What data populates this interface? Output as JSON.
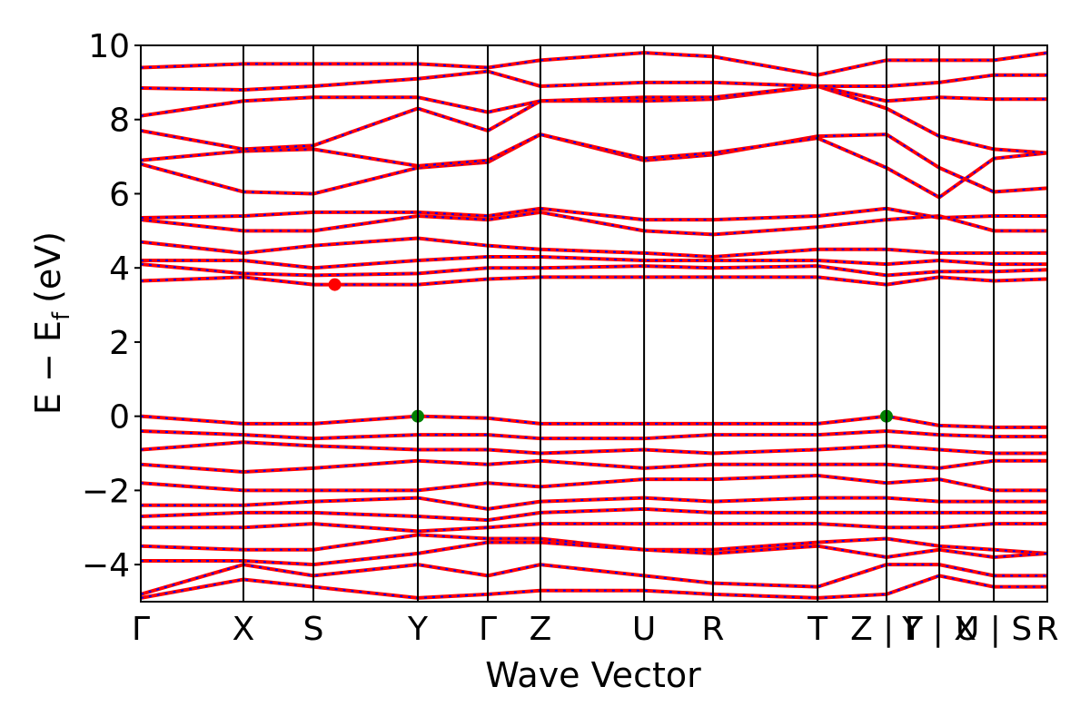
{
  "chart_data": {
    "type": "line",
    "xlabel": "Wave Vector",
    "ylabel": "E − E",
    "ylabel_sub": "f",
    "ylabel_unit": "(eV)",
    "x": [
      0,
      0.566,
      0.952,
      1.528,
      1.914,
      2.204,
      2.776,
      3.156,
      3.733,
      4.113,
      4.404,
      4.705,
      5.0
    ],
    "xlim": [
      0,
      5.0
    ],
    "xticks": [
      {
        "value": 0,
        "label": "Γ"
      },
      {
        "value": 0.566,
        "label": "X"
      },
      {
        "value": 0.952,
        "label": "S"
      },
      {
        "value": 1.528,
        "label": "Y"
      },
      {
        "value": 1.914,
        "label": "Γ"
      },
      {
        "value": 2.204,
        "label": "Z"
      },
      {
        "value": 2.776,
        "label": "U"
      },
      {
        "value": 3.156,
        "label": "R"
      },
      {
        "value": 3.733,
        "label": "T"
      },
      {
        "value": 4.113,
        "label": "Z | Γ"
      },
      {
        "value": 4.404,
        "label": "Y | X"
      },
      {
        "value": 4.705,
        "label": "U | S"
      },
      {
        "value": 5.0,
        "label": "R"
      }
    ],
    "ylim": [
      -5,
      10
    ],
    "yticks": [
      {
        "value": -4,
        "label": "−4"
      },
      {
        "value": -2,
        "label": "−2"
      },
      0,
      2,
      4,
      6,
      8,
      10
    ],
    "dash_color": "#0000ff",
    "series": [
      {
        "color": "#ff0000",
        "values": [
          3.65,
          3.75,
          3.55,
          3.55,
          3.7,
          3.75,
          3.75,
          3.75,
          3.75,
          3.55,
          3.75,
          3.65,
          3.7
        ]
      },
      {
        "color": "#ff0000",
        "values": [
          4.1,
          3.85,
          3.8,
          3.85,
          4.0,
          4.0,
          4.05,
          4.0,
          4.05,
          3.8,
          3.9,
          3.9,
          3.95
        ]
      },
      {
        "color": "#ff0000",
        "values": [
          4.2,
          4.2,
          4.0,
          4.2,
          4.3,
          4.3,
          4.2,
          4.2,
          4.2,
          4.1,
          4.2,
          4.1,
          4.1
        ]
      },
      {
        "color": "#ff0000",
        "values": [
          4.7,
          4.4,
          4.6,
          4.8,
          4.6,
          4.5,
          4.4,
          4.3,
          4.5,
          4.5,
          4.4,
          4.4,
          4.4
        ]
      },
      {
        "color": "#ff0000",
        "values": [
          5.3,
          5.0,
          5.0,
          5.4,
          5.3,
          5.5,
          5.0,
          4.9,
          5.1,
          5.3,
          5.4,
          5.0,
          5.0
        ]
      },
      {
        "color": "#ff0000",
        "values": [
          5.35,
          5.4,
          5.5,
          5.5,
          5.4,
          5.6,
          5.3,
          5.3,
          5.4,
          5.6,
          5.35,
          5.4,
          5.4
        ]
      },
      {
        "color": "#ff0000",
        "values": [
          6.8,
          6.05,
          6.0,
          6.7,
          6.85,
          7.6,
          6.9,
          7.05,
          7.55,
          7.6,
          6.7,
          6.05,
          6.15
        ]
      },
      {
        "color": "#ff0000",
        "values": [
          6.9,
          7.15,
          7.2,
          6.75,
          6.9,
          7.6,
          6.95,
          7.1,
          7.5,
          6.7,
          5.9,
          6.95,
          7.1
        ]
      },
      {
        "color": "#ff0000",
        "values": [
          7.7,
          7.2,
          7.3,
          8.3,
          7.7,
          8.5,
          8.5,
          8.55,
          8.9,
          8.3,
          7.55,
          7.2,
          7.1
        ]
      },
      {
        "color": "#ff0000",
        "values": [
          8.1,
          8.5,
          8.6,
          8.6,
          8.2,
          8.5,
          8.6,
          8.6,
          8.9,
          8.5,
          8.6,
          8.55,
          8.55
        ]
      },
      {
        "color": "#ff0000",
        "values": [
          8.85,
          8.8,
          8.9,
          9.1,
          9.3,
          8.9,
          9.0,
          9.0,
          8.9,
          8.9,
          9.0,
          9.2,
          9.2
        ]
      },
      {
        "color": "#ff0000",
        "values": [
          9.4,
          9.5,
          9.5,
          9.5,
          9.4,
          9.6,
          9.8,
          9.7,
          9.2,
          9.6,
          9.6,
          9.6,
          9.8
        ]
      },
      {
        "color": "#ff0000",
        "values": [
          0,
          -0.2,
          -0.2,
          0,
          -0.05,
          -0.2,
          -0.2,
          -0.2,
          -0.2,
          0,
          -0.25,
          -0.3,
          -0.3
        ]
      },
      {
        "color": "#ff0000",
        "values": [
          -0.4,
          -0.5,
          -0.6,
          -0.5,
          -0.5,
          -0.6,
          -0.6,
          -0.5,
          -0.5,
          -0.4,
          -0.5,
          -0.55,
          -0.55
        ]
      },
      {
        "color": "#ff0000",
        "values": [
          -0.9,
          -0.7,
          -0.8,
          -0.9,
          -0.9,
          -1.0,
          -0.9,
          -1.0,
          -0.9,
          -0.8,
          -0.9,
          -1.0,
          -1.0
        ]
      },
      {
        "color": "#ff0000",
        "values": [
          -1.3,
          -1.5,
          -1.4,
          -1.2,
          -1.3,
          -1.2,
          -1.4,
          -1.3,
          -1.3,
          -1.3,
          -1.4,
          -1.2,
          -1.2
        ]
      },
      {
        "color": "#ff0000",
        "values": [
          -1.8,
          -2.0,
          -2.0,
          -2.0,
          -1.8,
          -1.9,
          -1.7,
          -1.7,
          -1.6,
          -1.8,
          -1.7,
          -2.0,
          -2.0
        ]
      },
      {
        "color": "#ff0000",
        "values": [
          -2.4,
          -2.4,
          -2.3,
          -2.2,
          -2.5,
          -2.3,
          -2.2,
          -2.3,
          -2.2,
          -2.2,
          -2.3,
          -2.3,
          -2.3
        ]
      },
      {
        "color": "#ff0000",
        "values": [
          -2.7,
          -2.6,
          -2.6,
          -2.7,
          -2.8,
          -2.6,
          -2.5,
          -2.6,
          -2.6,
          -2.6,
          -2.6,
          -2.6,
          -2.6
        ]
      },
      {
        "color": "#ff0000",
        "values": [
          -3.0,
          -3.0,
          -2.9,
          -3.1,
          -3.0,
          -2.9,
          -2.9,
          -2.9,
          -2.9,
          -3.0,
          -3.0,
          -2.9,
          -2.9
        ]
      },
      {
        "color": "#ff0000",
        "values": [
          -3.5,
          -3.6,
          -3.6,
          -3.2,
          -3.3,
          -3.3,
          -3.6,
          -3.6,
          -3.4,
          -3.3,
          -3.5,
          -3.6,
          -3.7
        ]
      },
      {
        "color": "#ff0000",
        "values": [
          -3.9,
          -3.9,
          -4.0,
          -3.7,
          -3.4,
          -3.4,
          -3.6,
          -3.7,
          -3.5,
          -3.8,
          -3.6,
          -3.8,
          -3.7
        ]
      },
      {
        "color": "#ff0000",
        "values": [
          -4.8,
          -4.0,
          -4.3,
          -4.0,
          -4.3,
          -4.0,
          -4.3,
          -4.5,
          -4.6,
          -4.0,
          -4.0,
          -4.3,
          -4.3
        ]
      },
      {
        "color": "#ff0000",
        "values": [
          -4.9,
          -4.4,
          -4.6,
          -4.9,
          -4.8,
          -4.7,
          -4.7,
          -4.8,
          -4.9,
          -4.8,
          -4.3,
          -4.6,
          -4.6
        ]
      }
    ],
    "points": [
      {
        "x": 1.528,
        "y": 0,
        "color": "#008000"
      },
      {
        "x": 4.113,
        "y": 0,
        "color": "#008000"
      },
      {
        "x": 1.07,
        "y": 3.55,
        "color": "#ff0000"
      }
    ]
  }
}
